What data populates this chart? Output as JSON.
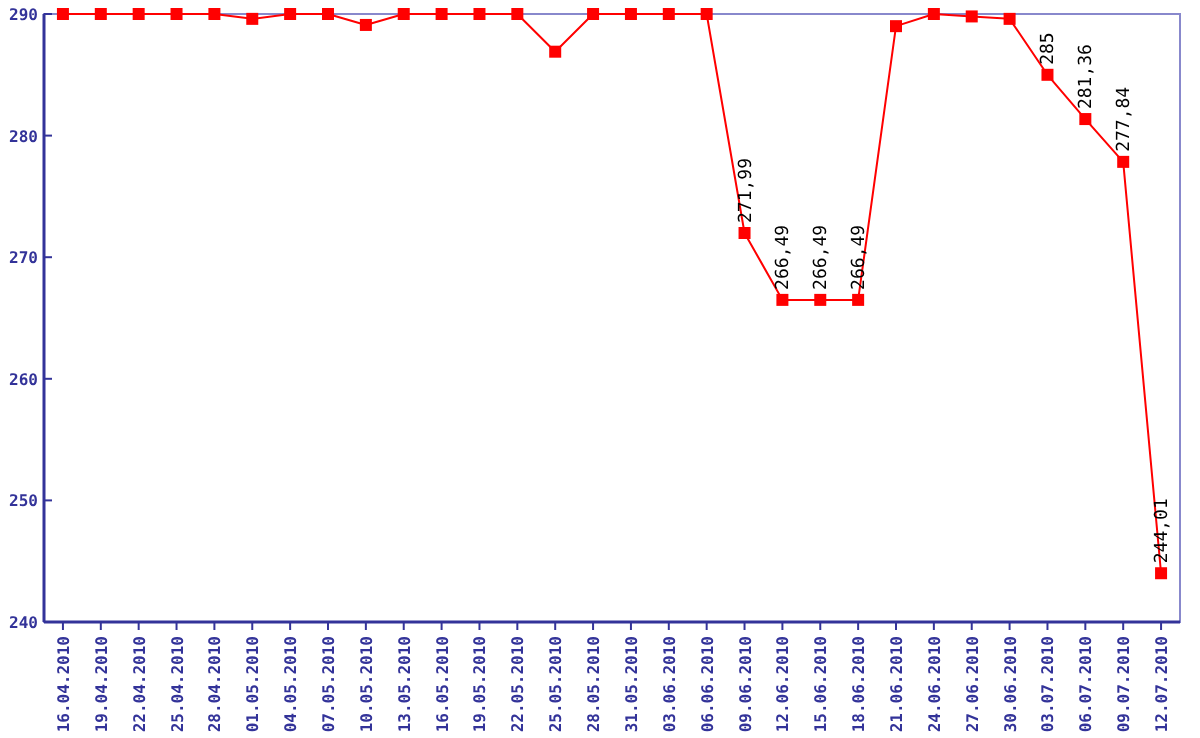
{
  "chart_data": {
    "type": "line",
    "categories": [
      "16.04.2010",
      "19.04.2010",
      "22.04.2010",
      "25.04.2010",
      "28.04.2010",
      "01.05.2010",
      "04.05.2010",
      "07.05.2010",
      "10.05.2010",
      "13.05.2010",
      "16.05.2010",
      "19.05.2010",
      "22.05.2010",
      "25.05.2010",
      "28.05.2010",
      "31.05.2010",
      "03.06.2010",
      "06.06.2010",
      "09.06.2010",
      "12.06.2010",
      "15.06.2010",
      "18.06.2010",
      "21.06.2010",
      "24.06.2010",
      "27.06.2010",
      "30.06.2010",
      "03.07.2010",
      "06.07.2010",
      "09.07.2010",
      "12.07.2010"
    ],
    "series": [
      {
        "color": "#ff0000",
        "values": [
          290,
          290,
          290,
          290,
          290,
          289.6,
          290,
          290,
          289.1,
          290,
          290,
          290,
          290,
          286.9,
          290,
          290,
          290,
          290,
          271.99,
          266.49,
          266.49,
          266.49,
          289,
          290,
          289.8,
          289.6,
          285,
          281.36,
          277.84,
          244.01
        ],
        "value_labels": [
          null,
          null,
          null,
          null,
          null,
          null,
          null,
          null,
          null,
          null,
          null,
          null,
          null,
          null,
          null,
          null,
          null,
          null,
          "271,99",
          "266,49",
          "266,49",
          "266,49",
          null,
          null,
          null,
          null,
          "285",
          "281,36",
          "277,84",
          "244,01"
        ]
      }
    ],
    "ylim": [
      240,
      290
    ],
    "yticks": [
      240,
      250,
      260,
      270,
      280,
      290
    ],
    "marker": "square",
    "line_style": "solid",
    "grid": false
  }
}
